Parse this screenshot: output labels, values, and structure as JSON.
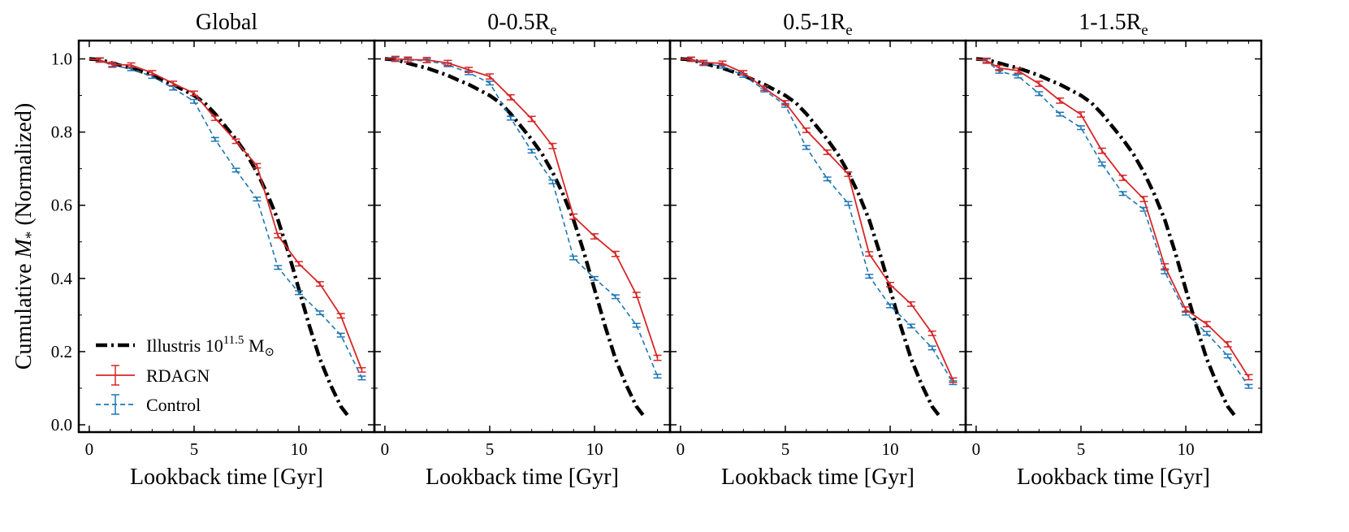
{
  "chart_data": {
    "type": "line",
    "ylabel": "Cumulative M* (Normalized)",
    "ylabel_parts": {
      "pre": "Cumulative ",
      "ital": "M",
      "sub": "*",
      "post": " (Normalized)"
    },
    "xlim": [
      -0.5,
      13.6
    ],
    "ylim": [
      -0.02,
      1.05
    ],
    "xticks": [
      0,
      5,
      10
    ],
    "yticks": [
      0.0,
      0.2,
      0.4,
      0.6,
      0.8,
      1.0
    ],
    "ytick_labels": [
      "0.0",
      "0.2",
      "0.4",
      "0.6",
      "0.8",
      "1.0"
    ],
    "legend": {
      "position": "lower-left",
      "entries": [
        {
          "key": "illustris",
          "label": "Illustris 10",
          "sup": "11.5",
          "unit": " M",
          "unit_sub": "⊙"
        },
        {
          "key": "rdagn",
          "label": "RDAGN"
        },
        {
          "key": "control",
          "label": "Control"
        }
      ]
    },
    "colors": {
      "illustris": "#000000",
      "rdagn": "#d62728",
      "control": "#1f77b4"
    },
    "illustris": {
      "x": [
        0,
        0.5,
        1,
        1.5,
        2,
        2.5,
        3,
        3.5,
        4,
        4.5,
        5,
        5.5,
        6,
        6.5,
        7,
        7.5,
        8,
        8.5,
        9,
        9.5,
        10,
        10.5,
        11,
        11.5,
        12,
        12.4
      ],
      "y": [
        1.0,
        0.998,
        0.99,
        0.982,
        0.975,
        0.965,
        0.955,
        0.942,
        0.93,
        0.915,
        0.9,
        0.88,
        0.85,
        0.815,
        0.78,
        0.74,
        0.69,
        0.63,
        0.56,
        0.47,
        0.37,
        0.27,
        0.18,
        0.11,
        0.05,
        0.02
      ]
    },
    "panels": [
      {
        "title": "Global",
        "rdagn": {
          "x": [
            0,
            0.5,
            1.1,
            2,
            3,
            4,
            5,
            6,
            7,
            8,
            9,
            10,
            11,
            12,
            13
          ],
          "y": [
            1.0,
            0.997,
            0.985,
            0.983,
            0.962,
            0.933,
            0.906,
            0.838,
            0.775,
            0.708,
            0.517,
            0.44,
            0.385,
            0.298,
            0.15
          ],
          "err": 0.006
        },
        "control": {
          "x": [
            0,
            0.5,
            1.1,
            2,
            3,
            4,
            5,
            6,
            7,
            8,
            9,
            10,
            11,
            12,
            13
          ],
          "y": [
            1.0,
            0.997,
            0.982,
            0.973,
            0.952,
            0.92,
            0.884,
            0.78,
            0.696,
            0.617,
            0.43,
            0.361,
            0.306,
            0.245,
            0.128
          ],
          "err": 0.005
        }
      },
      {
        "title": "0-0.5R",
        "title_sub": "e",
        "rdagn": {
          "x": [
            0,
            0.5,
            1.1,
            2,
            3,
            4,
            5,
            6,
            7,
            8,
            9,
            10,
            11,
            12,
            13
          ],
          "y": [
            1.0,
            1.0,
            0.998,
            0.997,
            0.989,
            0.97,
            0.952,
            0.895,
            0.836,
            0.762,
            0.569,
            0.515,
            0.467,
            0.355,
            0.183
          ],
          "err": 0.007
        },
        "control": {
          "x": [
            0,
            0.5,
            1.1,
            2,
            3,
            4,
            5,
            6,
            7,
            8,
            9,
            10,
            11,
            12,
            13
          ],
          "y": [
            1.0,
            1.0,
            0.997,
            0.995,
            0.984,
            0.962,
            0.934,
            0.838,
            0.748,
            0.664,
            0.456,
            0.4,
            0.35,
            0.272,
            0.133
          ],
          "err": 0.005
        }
      },
      {
        "title": "0.5-1R",
        "title_sub": "e",
        "rdagn": {
          "x": [
            0,
            0.5,
            1.1,
            2,
            3,
            4,
            5,
            6,
            7,
            8,
            9,
            10,
            11,
            12,
            13
          ],
          "y": [
            1.0,
            0.999,
            0.99,
            0.988,
            0.962,
            0.92,
            0.88,
            0.805,
            0.745,
            0.685,
            0.467,
            0.383,
            0.33,
            0.25,
            0.122
          ],
          "err": 0.006
        },
        "control": {
          "x": [
            0,
            0.5,
            1.1,
            2,
            3,
            4,
            5,
            6,
            7,
            8,
            9,
            10,
            11,
            12,
            13
          ],
          "y": [
            1.0,
            0.999,
            0.987,
            0.98,
            0.955,
            0.915,
            0.873,
            0.758,
            0.672,
            0.605,
            0.406,
            0.325,
            0.27,
            0.21,
            0.115
          ],
          "err": 0.005
        }
      },
      {
        "title": "1-1.5R",
        "title_sub": "e",
        "rdagn": {
          "x": [
            0,
            0.5,
            1.1,
            2,
            3,
            4,
            5,
            6,
            7,
            8,
            9,
            10,
            11,
            12,
            13
          ],
          "y": [
            1.0,
            0.995,
            0.975,
            0.968,
            0.932,
            0.886,
            0.848,
            0.749,
            0.675,
            0.617,
            0.433,
            0.315,
            0.275,
            0.22,
            0.13
          ],
          "err": 0.007
        },
        "control": {
          "x": [
            0,
            0.5,
            1.1,
            2,
            3,
            4,
            5,
            6,
            7,
            8,
            9,
            10,
            11,
            12,
            13
          ],
          "y": [
            1.0,
            0.995,
            0.966,
            0.953,
            0.905,
            0.849,
            0.812,
            0.713,
            0.632,
            0.589,
            0.418,
            0.305,
            0.25,
            0.188,
            0.105
          ],
          "err": 0.005
        }
      }
    ],
    "xlabel": "Lookback time [Gyr]"
  }
}
